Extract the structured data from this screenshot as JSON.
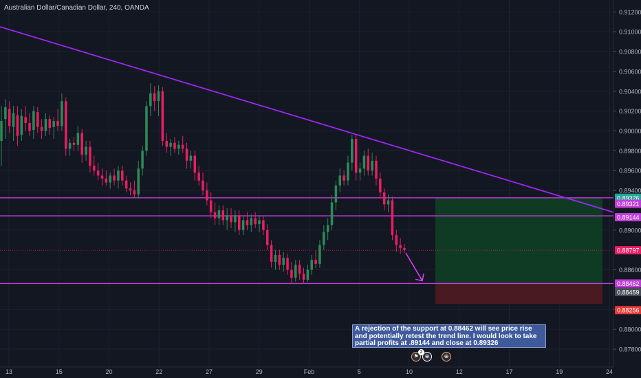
{
  "header": {
    "title": "Australian Dollar/Canadian Dollar, 240, OANDA"
  },
  "annotation": {
    "text": "A rejection of the support at 0.88462 will see price rise and potentially retest the trend line.  I would look to take partial profits at .89144 and close at 0.89326"
  },
  "colors": {
    "background": "#131722",
    "up": "#26a69a",
    "up_candle": "#2e8b57",
    "down": "#e91e63",
    "trendline": "#9c27f0",
    "hline": "#c03ed8",
    "profit_zone": "#0f3b24",
    "loss_zone": "#4a1a22",
    "arrow": "#e040fb"
  },
  "events": [
    {
      "icon": "flag-icon",
      "label": "2"
    },
    {
      "icon": "globe-icon",
      "label": ""
    }
  ],
  "chart_data": {
    "type": "candlestick",
    "symbol": "AUDCAD",
    "timeframe": "240",
    "source": "OANDA",
    "y_axis": {
      "ticks": [
        "0.91200",
        "0.91000",
        "0.90800",
        "0.90600",
        "0.90400",
        "0.90200",
        "0.90000",
        "0.89800",
        "0.89600",
        "0.89400",
        "0.89000",
        "0.88600",
        "0.88200",
        "0.88000",
        "0.87800"
      ],
      "ylim": [
        0.8762,
        0.9132
      ]
    },
    "x_axis": {
      "ticks": [
        "13",
        "15",
        "20",
        "22",
        "27",
        "29",
        "Feb",
        "5",
        "10",
        "12",
        "17",
        "19",
        "24"
      ]
    },
    "price_labels": [
      {
        "text": "0.89326",
        "value": 0.89326,
        "color": "#26a69a"
      },
      {
        "text": "0.89321",
        "value": 0.89321,
        "color": "#c03ed8"
      },
      {
        "text": "0.89144",
        "value": 0.89144,
        "color": "#c03ed8"
      },
      {
        "text": "0.88797",
        "value": 0.88797,
        "color": "#e91e63"
      },
      {
        "text": "0.88462",
        "value": 0.88462,
        "color": "#c03ed8"
      },
      {
        "text": "0.88459",
        "value": 0.88459,
        "color": "#4a4e59"
      },
      {
        "text": "0.88256",
        "value": 0.88256,
        "color": "#e53935"
      }
    ],
    "horizontal_lines": [
      0.89326,
      0.89144,
      0.88462
    ],
    "trend_line": {
      "from": 0.9105,
      "to": 0.8918
    },
    "position": {
      "entry": 0.88462,
      "target": 0.89326,
      "stop": 0.88256
    },
    "last_price": 0.88797,
    "candles": [
      {
        "o": 0.899,
        "h": 0.9025,
        "l": 0.8965,
        "c": 0.901
      },
      {
        "o": 0.9012,
        "h": 0.9032,
        "l": 0.8992,
        "c": 0.9024
      },
      {
        "o": 0.9022,
        "h": 0.903,
        "l": 0.8998,
        "c": 0.9005
      },
      {
        "o": 0.9004,
        "h": 0.9025,
        "l": 0.899,
        "c": 0.9018
      },
      {
        "o": 0.9016,
        "h": 0.9025,
        "l": 0.8985,
        "c": 0.8995
      },
      {
        "o": 0.8996,
        "h": 0.9022,
        "l": 0.899,
        "c": 0.9015
      },
      {
        "o": 0.9014,
        "h": 0.9025,
        "l": 0.9,
        "c": 0.9008
      },
      {
        "o": 0.9008,
        "h": 0.9018,
        "l": 0.8995,
        "c": 0.9
      },
      {
        "o": 0.9001,
        "h": 0.9025,
        "l": 0.8992,
        "c": 0.902
      },
      {
        "o": 0.9019,
        "h": 0.9024,
        "l": 0.8998,
        "c": 0.9004
      },
      {
        "o": 0.9004,
        "h": 0.9012,
        "l": 0.8992,
        "c": 0.9
      },
      {
        "o": 0.9,
        "h": 0.9018,
        "l": 0.8995,
        "c": 0.9012
      },
      {
        "o": 0.9012,
        "h": 0.9016,
        "l": 0.8996,
        "c": 0.9003
      },
      {
        "o": 0.9004,
        "h": 0.9014,
        "l": 0.8992,
        "c": 0.901
      },
      {
        "o": 0.901,
        "h": 0.9022,
        "l": 0.9,
        "c": 0.9005
      },
      {
        "o": 0.9005,
        "h": 0.9038,
        "l": 0.9,
        "c": 0.903
      },
      {
        "o": 0.903,
        "h": 0.9034,
        "l": 0.8975,
        "c": 0.8982
      },
      {
        "o": 0.8982,
        "h": 0.8992,
        "l": 0.8975,
        "c": 0.8988
      },
      {
        "o": 0.8988,
        "h": 0.8994,
        "l": 0.898,
        "c": 0.8986
      },
      {
        "o": 0.8986,
        "h": 0.9005,
        "l": 0.898,
        "c": 0.8998
      },
      {
        "o": 0.8998,
        "h": 0.9002,
        "l": 0.8968,
        "c": 0.8976
      },
      {
        "o": 0.8976,
        "h": 0.899,
        "l": 0.897,
        "c": 0.8984
      },
      {
        "o": 0.8984,
        "h": 0.899,
        "l": 0.8958,
        "c": 0.8965
      },
      {
        "o": 0.8965,
        "h": 0.8975,
        "l": 0.8955,
        "c": 0.896
      },
      {
        "o": 0.896,
        "h": 0.8968,
        "l": 0.895,
        "c": 0.8955
      },
      {
        "o": 0.8955,
        "h": 0.8962,
        "l": 0.8945,
        "c": 0.8952
      },
      {
        "o": 0.8952,
        "h": 0.896,
        "l": 0.8945,
        "c": 0.8948
      },
      {
        "o": 0.8948,
        "h": 0.8958,
        "l": 0.8942,
        "c": 0.8955
      },
      {
        "o": 0.8955,
        "h": 0.8962,
        "l": 0.8945,
        "c": 0.895
      },
      {
        "o": 0.895,
        "h": 0.8965,
        "l": 0.8942,
        "c": 0.896
      },
      {
        "o": 0.896,
        "h": 0.8965,
        "l": 0.8945,
        "c": 0.895
      },
      {
        "o": 0.895,
        "h": 0.8955,
        "l": 0.8938,
        "c": 0.8942
      },
      {
        "o": 0.8942,
        "h": 0.8948,
        "l": 0.8935,
        "c": 0.894
      },
      {
        "o": 0.894,
        "h": 0.895,
        "l": 0.8932,
        "c": 0.8936
      },
      {
        "o": 0.8936,
        "h": 0.897,
        "l": 0.8932,
        "c": 0.8962
      },
      {
        "o": 0.8962,
        "h": 0.8985,
        "l": 0.8955,
        "c": 0.898
      },
      {
        "o": 0.898,
        "h": 0.903,
        "l": 0.8975,
        "c": 0.9025
      },
      {
        "o": 0.9025,
        "h": 0.9048,
        "l": 0.9015,
        "c": 0.9038
      },
      {
        "o": 0.9038,
        "h": 0.9045,
        "l": 0.902,
        "c": 0.903
      },
      {
        "o": 0.903,
        "h": 0.9046,
        "l": 0.9015,
        "c": 0.904
      },
      {
        "o": 0.904,
        "h": 0.9044,
        "l": 0.8985,
        "c": 0.899
      },
      {
        "o": 0.899,
        "h": 0.8998,
        "l": 0.8978,
        "c": 0.8984
      },
      {
        "o": 0.8984,
        "h": 0.8992,
        "l": 0.8975,
        "c": 0.8988
      },
      {
        "o": 0.8988,
        "h": 0.8994,
        "l": 0.8978,
        "c": 0.8982
      },
      {
        "o": 0.8982,
        "h": 0.899,
        "l": 0.8976,
        "c": 0.8986
      },
      {
        "o": 0.8986,
        "h": 0.8995,
        "l": 0.8978,
        "c": 0.8982
      },
      {
        "o": 0.8982,
        "h": 0.8988,
        "l": 0.8962,
        "c": 0.897
      },
      {
        "o": 0.897,
        "h": 0.898,
        "l": 0.8962,
        "c": 0.8975
      },
      {
        "o": 0.8975,
        "h": 0.898,
        "l": 0.895,
        "c": 0.8958
      },
      {
        "o": 0.8958,
        "h": 0.8965,
        "l": 0.8945,
        "c": 0.895
      },
      {
        "o": 0.895,
        "h": 0.8958,
        "l": 0.8935,
        "c": 0.894
      },
      {
        "o": 0.894,
        "h": 0.8948,
        "l": 0.8925,
        "c": 0.893
      },
      {
        "o": 0.893,
        "h": 0.8938,
        "l": 0.8912,
        "c": 0.8918
      },
      {
        "o": 0.8918,
        "h": 0.8928,
        "l": 0.8905,
        "c": 0.8912
      },
      {
        "o": 0.8912,
        "h": 0.8925,
        "l": 0.8905,
        "c": 0.892
      },
      {
        "o": 0.892,
        "h": 0.8925,
        "l": 0.8905,
        "c": 0.891
      },
      {
        "o": 0.891,
        "h": 0.8922,
        "l": 0.89,
        "c": 0.8915
      },
      {
        "o": 0.8915,
        "h": 0.8922,
        "l": 0.8902,
        "c": 0.8908
      },
      {
        "o": 0.8908,
        "h": 0.892,
        "l": 0.8898,
        "c": 0.8915
      },
      {
        "o": 0.8915,
        "h": 0.892,
        "l": 0.8895,
        "c": 0.89
      },
      {
        "o": 0.89,
        "h": 0.8915,
        "l": 0.8895,
        "c": 0.891
      },
      {
        "o": 0.891,
        "h": 0.8918,
        "l": 0.89,
        "c": 0.8905
      },
      {
        "o": 0.8905,
        "h": 0.8916,
        "l": 0.8898,
        "c": 0.8912
      },
      {
        "o": 0.8912,
        "h": 0.8918,
        "l": 0.8902,
        "c": 0.8906
      },
      {
        "o": 0.8906,
        "h": 0.8915,
        "l": 0.8898,
        "c": 0.891
      },
      {
        "o": 0.891,
        "h": 0.8915,
        "l": 0.8895,
        "c": 0.89
      },
      {
        "o": 0.89,
        "h": 0.8906,
        "l": 0.888,
        "c": 0.8885
      },
      {
        "o": 0.8885,
        "h": 0.889,
        "l": 0.8862,
        "c": 0.8868
      },
      {
        "o": 0.8868,
        "h": 0.888,
        "l": 0.886,
        "c": 0.8875
      },
      {
        "o": 0.8875,
        "h": 0.888,
        "l": 0.886,
        "c": 0.8865
      },
      {
        "o": 0.8865,
        "h": 0.8878,
        "l": 0.8858,
        "c": 0.8872
      },
      {
        "o": 0.8872,
        "h": 0.8876,
        "l": 0.8855,
        "c": 0.886
      },
      {
        "o": 0.886,
        "h": 0.8868,
        "l": 0.8846,
        "c": 0.8852
      },
      {
        "o": 0.8852,
        "h": 0.887,
        "l": 0.8848,
        "c": 0.8865
      },
      {
        "o": 0.8865,
        "h": 0.887,
        "l": 0.885,
        "c": 0.8856
      },
      {
        "o": 0.8856,
        "h": 0.8862,
        "l": 0.8846,
        "c": 0.885
      },
      {
        "o": 0.885,
        "h": 0.8865,
        "l": 0.8848,
        "c": 0.886
      },
      {
        "o": 0.886,
        "h": 0.8875,
        "l": 0.8855,
        "c": 0.887
      },
      {
        "o": 0.887,
        "h": 0.888,
        "l": 0.8862,
        "c": 0.8866
      },
      {
        "o": 0.8866,
        "h": 0.889,
        "l": 0.8862,
        "c": 0.8885
      },
      {
        "o": 0.8885,
        "h": 0.8905,
        "l": 0.888,
        "c": 0.8898
      },
      {
        "o": 0.8898,
        "h": 0.8912,
        "l": 0.889,
        "c": 0.8905
      },
      {
        "o": 0.8905,
        "h": 0.8935,
        "l": 0.89,
        "c": 0.8928
      },
      {
        "o": 0.8928,
        "h": 0.895,
        "l": 0.892,
        "c": 0.8945
      },
      {
        "o": 0.8945,
        "h": 0.8962,
        "l": 0.8938,
        "c": 0.8955
      },
      {
        "o": 0.8955,
        "h": 0.896,
        "l": 0.8945,
        "c": 0.895
      },
      {
        "o": 0.895,
        "h": 0.8975,
        "l": 0.8945,
        "c": 0.8968
      },
      {
        "o": 0.8968,
        "h": 0.8996,
        "l": 0.896,
        "c": 0.8992
      },
      {
        "o": 0.8992,
        "h": 0.8996,
        "l": 0.895,
        "c": 0.8958
      },
      {
        "o": 0.8958,
        "h": 0.8968,
        "l": 0.895,
        "c": 0.8962
      },
      {
        "o": 0.8962,
        "h": 0.898,
        "l": 0.8955,
        "c": 0.8975
      },
      {
        "o": 0.8975,
        "h": 0.8982,
        "l": 0.8955,
        "c": 0.896
      },
      {
        "o": 0.896,
        "h": 0.8978,
        "l": 0.8955,
        "c": 0.897
      },
      {
        "o": 0.897,
        "h": 0.8975,
        "l": 0.8945,
        "c": 0.8952
      },
      {
        "o": 0.8952,
        "h": 0.8958,
        "l": 0.8932,
        "c": 0.8938
      },
      {
        "o": 0.8938,
        "h": 0.8942,
        "l": 0.892,
        "c": 0.8926
      },
      {
        "o": 0.8926,
        "h": 0.8936,
        "l": 0.8918,
        "c": 0.893
      },
      {
        "o": 0.893,
        "h": 0.8934,
        "l": 0.889,
        "c": 0.8895
      },
      {
        "o": 0.8895,
        "h": 0.89,
        "l": 0.8878,
        "c": 0.8885
      },
      {
        "o": 0.8885,
        "h": 0.8892,
        "l": 0.8876,
        "c": 0.8882
      },
      {
        "o": 0.8882,
        "h": 0.8886,
        "l": 0.8877,
        "c": 0.888
      }
    ]
  }
}
